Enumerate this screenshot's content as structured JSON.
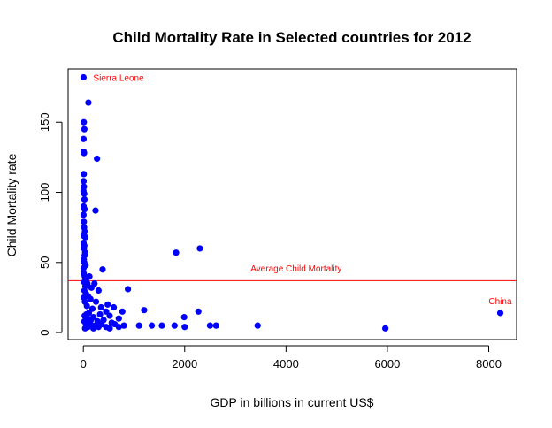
{
  "chart_data": {
    "type": "scatter",
    "title": "Child Mortality Rate in Selected countries for 2012",
    "xlabel": "GDP in billions in current US$",
    "ylabel": "Child Mortality rate",
    "xlim": [
      -300,
      8550
    ],
    "ylim": [
      -5,
      188
    ],
    "xticks": [
      0,
      2000,
      4000,
      6000,
      8000
    ],
    "yticks": [
      0,
      50,
      100,
      150
    ],
    "xtick_labels": [
      "0",
      "2000",
      "4000",
      "6000",
      "8000"
    ],
    "ytick_labels": [
      "0",
      "50",
      "100",
      "150"
    ],
    "grid": false,
    "point_color": "#0000ff",
    "annotation_color": "#ff0000",
    "average_line": {
      "y": 37,
      "label": "Average Child Mortality",
      "label_x": 4200,
      "label_y": 46
    },
    "annotations": [
      {
        "text": "Sierra Leone",
        "x": 4,
        "y": 182
      },
      {
        "text": "China",
        "x": 8227,
        "y": 14
      }
    ],
    "points": [
      [
        4,
        182
      ],
      [
        100,
        164
      ],
      [
        10,
        150
      ],
      [
        20,
        145
      ],
      [
        5,
        138
      ],
      [
        8,
        129
      ],
      [
        14,
        128
      ],
      [
        270,
        124
      ],
      [
        9,
        113
      ],
      [
        6,
        108
      ],
      [
        12,
        104
      ],
      [
        3,
        101
      ],
      [
        17,
        99
      ],
      [
        22,
        95
      ],
      [
        7,
        90
      ],
      [
        25,
        88
      ],
      [
        240,
        87
      ],
      [
        4,
        84
      ],
      [
        10,
        79
      ],
      [
        15,
        75
      ],
      [
        30,
        72
      ],
      [
        8,
        69
      ],
      [
        40,
        68
      ],
      [
        5,
        64
      ],
      [
        20,
        62
      ],
      [
        12,
        60
      ],
      [
        35,
        57
      ],
      [
        25,
        55
      ],
      [
        9,
        52
      ],
      [
        18,
        50
      ],
      [
        45,
        48
      ],
      [
        6,
        46
      ],
      [
        380,
        45
      ],
      [
        1830,
        57
      ],
      [
        2300,
        60
      ],
      [
        10,
        42
      ],
      [
        28,
        40
      ],
      [
        120,
        40
      ],
      [
        55,
        38
      ],
      [
        15,
        36
      ],
      [
        80,
        35
      ],
      [
        220,
        35
      ],
      [
        40,
        33
      ],
      [
        160,
        32
      ],
      [
        300,
        30
      ],
      [
        880,
        31
      ],
      [
        20,
        30
      ],
      [
        50,
        28
      ],
      [
        90,
        26
      ],
      [
        12,
        25
      ],
      [
        140,
        24
      ],
      [
        250,
        22
      ],
      [
        30,
        22
      ],
      [
        480,
        20
      ],
      [
        70,
        19
      ],
      [
        350,
        18
      ],
      [
        600,
        18
      ],
      [
        180,
        17
      ],
      [
        1200,
        16
      ],
      [
        450,
        15
      ],
      [
        770,
        15
      ],
      [
        2270,
        15
      ],
      [
        8227,
        14
      ],
      [
        110,
        14
      ],
      [
        60,
        13
      ],
      [
        330,
        13
      ],
      [
        520,
        12
      ],
      [
        25,
        12
      ],
      [
        200,
        11
      ],
      [
        1990,
        11
      ],
      [
        700,
        10
      ],
      [
        85,
        10
      ],
      [
        400,
        9
      ],
      [
        150,
        9
      ],
      [
        20,
        8
      ],
      [
        280,
        8
      ],
      [
        560,
        7
      ],
      [
        130,
        7
      ],
      [
        50,
        6
      ],
      [
        360,
        6
      ],
      [
        620,
        6
      ],
      [
        240,
        5
      ],
      [
        170,
        5
      ],
      [
        800,
        5
      ],
      [
        1100,
        5
      ],
      [
        1350,
        5
      ],
      [
        1550,
        5
      ],
      [
        1800,
        5
      ],
      [
        2500,
        5
      ],
      [
        2620,
        5
      ],
      [
        3440,
        5
      ],
      [
        450,
        4
      ],
      [
        90,
        4
      ],
      [
        300,
        4
      ],
      [
        700,
        4
      ],
      [
        2000,
        4
      ],
      [
        5960,
        3
      ],
      [
        35,
        3
      ],
      [
        520,
        3
      ],
      [
        200,
        3
      ]
    ]
  }
}
